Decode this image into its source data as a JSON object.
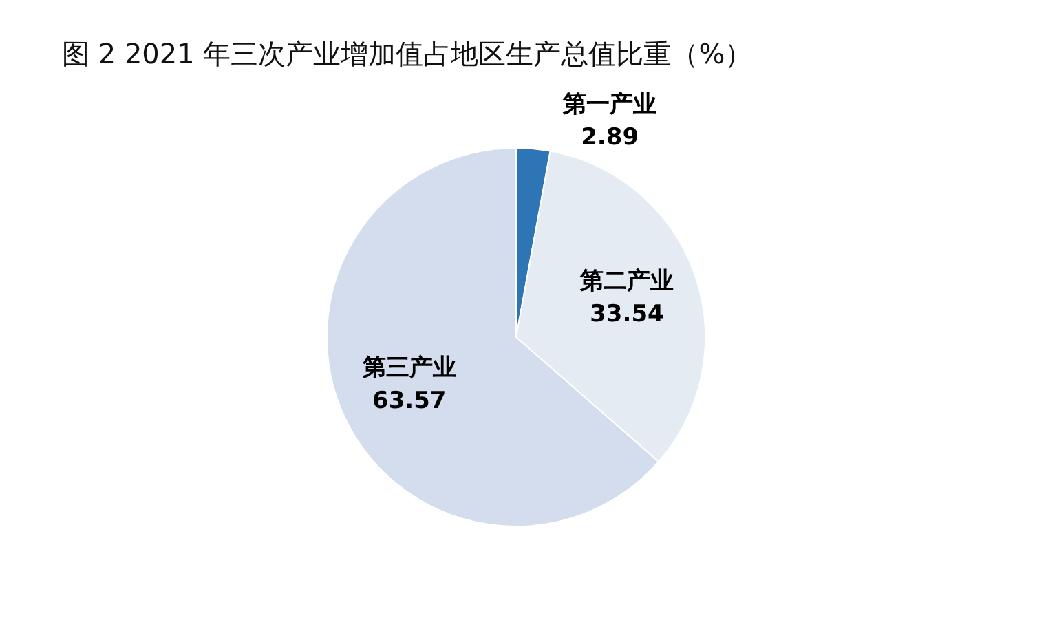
{
  "chart_data": {
    "type": "pie",
    "title": "图 2  2021 年三次产业增加值占地区生产总值比重（%）",
    "categories": [
      "第一产业",
      "第二产业",
      "第三产业"
    ],
    "values": [
      2.89,
      33.54,
      63.57
    ],
    "colors": [
      "#2e75b6",
      "#e4ebf3",
      "#d3ddee"
    ],
    "data_labels": true,
    "legend": false
  }
}
